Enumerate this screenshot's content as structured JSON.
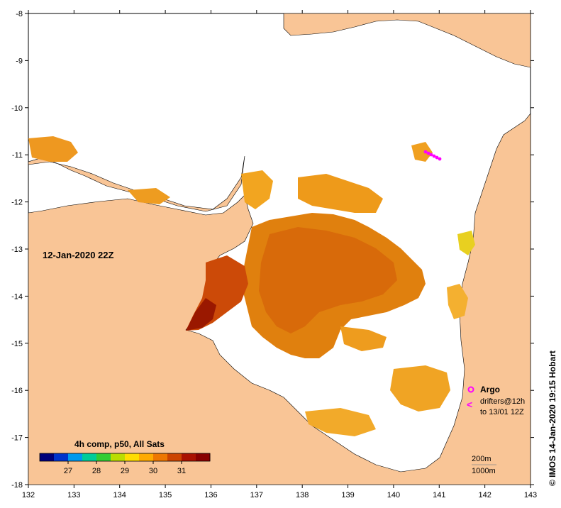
{
  "map": {
    "axes": {
      "x_ticks": [
        "132",
        "133",
        "134",
        "135",
        "136",
        "137",
        "138",
        "139",
        "140",
        "141",
        "142",
        "143"
      ],
      "y_ticks": [
        "-8",
        "-9",
        "-10",
        "-11",
        "-12",
        "-13",
        "-14",
        "-15",
        "-16",
        "-17",
        "-18"
      ],
      "lon_range": [
        132,
        143
      ],
      "lat_range": [
        -18,
        -8
      ],
      "grid": false
    },
    "timestamp_label": "12-Jan-2020 22Z",
    "colorbar": {
      "title": "4h comp, p50, All Sats",
      "tick_labels": [
        "27",
        "28",
        "29",
        "30",
        "31"
      ],
      "tick_values": [
        27,
        28,
        29,
        30,
        31
      ],
      "range": [
        26,
        32
      ],
      "colors": [
        "#00007a",
        "#0033cc",
        "#0099ee",
        "#00cc99",
        "#33cc33",
        "#bbdd00",
        "#ffdd00",
        "#ffaa00",
        "#ee7700",
        "#cc4400",
        "#aa1100",
        "#880000"
      ]
    },
    "legend": {
      "argo_label": "Argo",
      "drifters_label": "drifters@12h",
      "drifters_range": "to 13/01 12Z",
      "argo_color": "#ff00ff"
    },
    "scale": {
      "depth_200": "200m",
      "depth_1000": "1000m"
    },
    "credit": "© IMOS 14-Jan-2020 19:15 Hobart",
    "colors": {
      "land": "#f9c596",
      "ocean": "#ffffff",
      "drifter": "#ff00ff"
    }
  }
}
